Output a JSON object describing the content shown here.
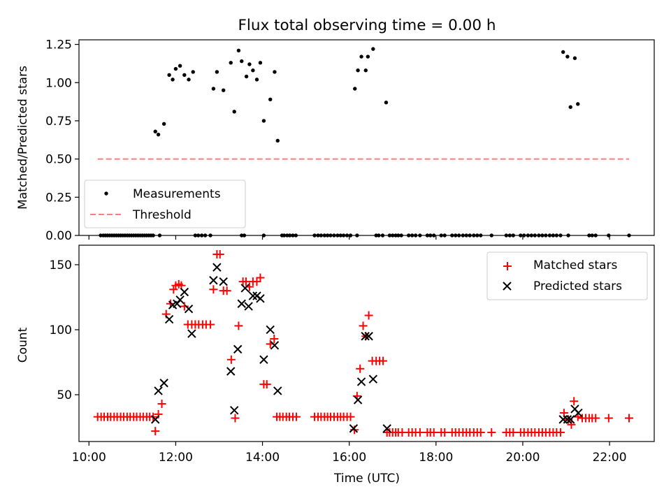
{
  "title": "Flux total observing time = 0.00 h",
  "colors": {
    "measurement": "#000000",
    "threshold": "#ff7f7f",
    "matched": "#ff0000",
    "predicted": "#000000"
  },
  "chart_data": [
    {
      "type": "scatter",
      "title": "Flux total observing time = 0.00 h",
      "xlabel": "",
      "ylabel": "Matched/Predicted stars",
      "xlim": [
        9.77,
        23.03
      ],
      "ylim": [
        0,
        1.28
      ],
      "y_ticks": [
        0.0,
        0.25,
        0.5,
        0.75,
        1.0,
        1.25
      ],
      "y_tick_labels": [
        "0.00",
        "0.25",
        "0.50",
        "0.75",
        "1.00",
        "1.25"
      ],
      "legend": {
        "placement": "lower-left",
        "entries": [
          "Measurements",
          "Threshold"
        ]
      },
      "series": [
        {
          "name": "Measurements",
          "marker": "dot",
          "x": [
            11.53,
            11.6,
            11.73,
            11.85,
            11.93,
            12.0,
            12.1,
            12.2,
            12.3,
            12.4,
            12.87,
            12.95,
            13.1,
            13.27,
            13.35,
            13.45,
            13.52,
            13.63,
            13.7,
            13.78,
            13.87,
            13.95,
            14.03,
            14.18,
            14.28,
            14.35,
            16.13,
            16.2,
            16.28,
            16.38,
            16.43,
            16.55,
            16.85,
            20.93,
            21.03,
            21.1,
            21.2,
            21.27,
            10.27,
            10.33,
            10.38,
            10.43,
            10.48,
            10.53,
            10.58,
            10.63,
            10.68,
            10.73,
            10.78,
            10.83,
            10.88,
            10.93,
            10.98,
            11.03,
            11.08,
            11.13,
            11.18,
            11.23,
            11.28,
            11.33,
            11.38,
            11.43,
            11.48,
            11.63,
            12.45,
            12.52,
            12.6,
            12.68,
            12.8,
            13.52,
            13.58,
            14.03,
            14.45,
            14.5,
            14.57,
            14.63,
            14.7,
            14.77,
            15.2,
            15.28,
            15.35,
            15.43,
            15.5,
            15.57,
            15.65,
            15.73,
            15.8,
            15.87,
            15.95,
            16.03,
            16.18,
            16.62,
            16.68,
            16.77,
            16.93,
            17.0,
            17.07,
            17.13,
            17.2,
            17.37,
            17.45,
            17.53,
            17.63,
            17.8,
            17.87,
            17.95,
            18.12,
            18.2,
            18.37,
            18.45,
            18.53,
            18.62,
            18.7,
            18.78,
            18.87,
            18.95,
            19.03,
            19.28,
            19.62,
            19.7,
            19.78,
            19.95,
            20.03,
            20.12,
            20.2,
            20.28,
            20.37,
            20.45,
            20.53,
            20.62,
            20.7,
            20.78,
            20.87,
            21.05,
            21.53,
            21.6,
            21.68,
            21.98,
            22.45
          ],
          "y": [
            0.68,
            0.66,
            0.73,
            1.05,
            1.02,
            1.09,
            1.11,
            1.05,
            1.02,
            1.07,
            0.96,
            1.07,
            0.95,
            1.13,
            0.81,
            1.21,
            1.14,
            1.04,
            1.12,
            1.08,
            1.02,
            1.13,
            0.75,
            0.89,
            1.07,
            0.62,
            0.96,
            1.08,
            1.17,
            1.08,
            1.17,
            1.22,
            0.87,
            1.2,
            1.17,
            0.84,
            1.16,
            0.86,
            0,
            0,
            0,
            0,
            0,
            0,
            0,
            0,
            0,
            0,
            0,
            0,
            0,
            0,
            0,
            0,
            0,
            0,
            0,
            0,
            0,
            0,
            0,
            0,
            0,
            0,
            0,
            0,
            0,
            0,
            0,
            0,
            0,
            0,
            0,
            0,
            0,
            0,
            0,
            0,
            0,
            0,
            0,
            0,
            0,
            0,
            0,
            0,
            0,
            0,
            0,
            0,
            0,
            0,
            0,
            0,
            0,
            0,
            0,
            0,
            0,
            0,
            0,
            0,
            0,
            0,
            0,
            0,
            0,
            0,
            0,
            0,
            0,
            0,
            0,
            0,
            0,
            0,
            0,
            0,
            0,
            0,
            0,
            0,
            0,
            0,
            0,
            0,
            0,
            0,
            0,
            0,
            0,
            0,
            0,
            0,
            0,
            0,
            0,
            0,
            0
          ]
        },
        {
          "name": "Threshold",
          "marker": "dashed-line",
          "x": [
            10.2,
            22.45
          ],
          "y": [
            0.5,
            0.5
          ]
        }
      ]
    },
    {
      "type": "scatter",
      "xlabel": "Time (UTC)",
      "ylabel": "Count",
      "xlim": [
        9.77,
        23.03
      ],
      "ylim": [
        14,
        165
      ],
      "x_ticks": [
        10,
        12,
        14,
        16,
        18,
        20,
        22
      ],
      "x_tick_labels": [
        "10:00",
        "12:00",
        "14:00",
        "16:00",
        "18:00",
        "20:00",
        "22:00"
      ],
      "y_ticks": [
        50,
        100,
        150
      ],
      "y_tick_labels": [
        "50",
        "100",
        "150"
      ],
      "legend": {
        "placement": "upper-right",
        "entries": [
          "Matched stars",
          "Predicted stars"
        ]
      },
      "series": [
        {
          "name": "Matched stars",
          "marker": "plus",
          "x": [
            10.2,
            10.28,
            10.35,
            10.43,
            10.5,
            10.58,
            10.65,
            10.73,
            10.8,
            10.88,
            10.95,
            11.03,
            11.1,
            11.18,
            11.25,
            11.33,
            11.4,
            11.48,
            11.53,
            11.6,
            11.68,
            11.78,
            11.88,
            11.95,
            12.0,
            12.07,
            12.13,
            12.2,
            12.28,
            12.37,
            12.45,
            12.53,
            12.62,
            12.7,
            12.8,
            12.87,
            12.95,
            13.02,
            13.1,
            13.18,
            13.28,
            13.37,
            13.45,
            13.55,
            13.62,
            13.7,
            13.78,
            13.87,
            13.95,
            14.03,
            14.1,
            14.18,
            14.27,
            14.33,
            14.4,
            14.47,
            14.55,
            14.62,
            14.7,
            14.78,
            15.2,
            15.28,
            15.35,
            15.43,
            15.5,
            15.57,
            15.65,
            15.73,
            15.8,
            15.87,
            15.95,
            16.03,
            16.12,
            16.18,
            16.25,
            16.32,
            16.38,
            16.45,
            16.53,
            16.62,
            16.7,
            16.78,
            16.87,
            16.93,
            17.0,
            17.07,
            17.13,
            17.22,
            17.37,
            17.45,
            17.53,
            17.63,
            17.8,
            17.87,
            17.95,
            18.12,
            18.2,
            18.37,
            18.45,
            18.53,
            18.62,
            18.7,
            18.78,
            18.87,
            18.95,
            19.03,
            19.28,
            19.62,
            19.7,
            19.78,
            19.95,
            20.03,
            20.12,
            20.2,
            20.28,
            20.37,
            20.45,
            20.53,
            20.62,
            20.7,
            20.78,
            20.87,
            20.95,
            21.05,
            21.12,
            21.18,
            21.27,
            21.37,
            21.45,
            21.53,
            21.6,
            21.68,
            21.98,
            22.45
          ],
          "y": [
            33,
            33,
            33,
            33,
            33,
            33,
            33,
            33,
            33,
            33,
            33,
            33,
            33,
            33,
            33,
            33,
            33,
            33,
            22,
            35,
            43,
            112,
            120,
            131,
            134,
            135,
            134,
            118,
            104,
            104,
            104,
            104,
            104,
            104,
            104,
            131,
            158,
            158,
            130,
            130,
            77,
            32,
            103,
            137,
            137,
            133,
            137,
            137,
            140,
            58,
            58,
            89,
            93,
            33,
            33,
            33,
            33,
            33,
            33,
            33,
            33,
            33,
            33,
            33,
            33,
            33,
            33,
            33,
            33,
            33,
            33,
            33,
            23,
            49,
            70,
            103,
            95,
            111,
            76,
            76,
            76,
            76,
            21,
            21,
            21,
            21,
            21,
            21,
            21,
            21,
            21,
            21,
            21,
            21,
            21,
            21,
            21,
            21,
            21,
            21,
            21,
            21,
            21,
            21,
            21,
            21,
            21,
            21,
            21,
            21,
            21,
            21,
            21,
            21,
            21,
            21,
            21,
            21,
            21,
            21,
            21,
            21,
            36,
            31,
            27,
            45,
            33,
            32,
            32,
            32,
            32,
            32,
            32,
            32
          ]
        },
        {
          "name": "Predicted stars",
          "marker": "x",
          "x": [
            11.53,
            11.6,
            11.73,
            11.85,
            11.93,
            12.03,
            12.1,
            12.2,
            12.3,
            12.37,
            12.87,
            12.95,
            13.1,
            13.27,
            13.35,
            13.43,
            13.52,
            13.6,
            13.68,
            13.78,
            13.87,
            13.95,
            14.03,
            14.18,
            14.28,
            14.35,
            16.1,
            16.2,
            16.28,
            16.37,
            16.45,
            16.55,
            16.87,
            20.93,
            21.03,
            21.1,
            21.2,
            21.28
          ],
          "y": [
            31,
            53,
            59,
            108,
            119,
            120,
            123,
            129,
            116,
            97,
            138,
            148,
            137,
            68,
            38,
            85,
            120,
            132,
            118,
            126,
            126,
            124,
            77,
            100,
            88,
            53,
            24,
            46,
            60,
            95,
            95,
            62,
            24,
            31,
            31,
            31,
            39,
            36
          ]
        }
      ]
    }
  ]
}
